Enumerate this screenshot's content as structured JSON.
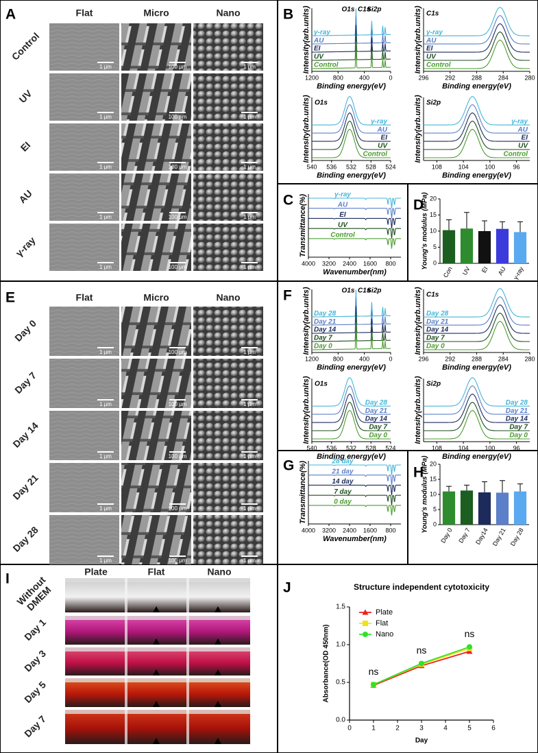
{
  "panel_a": {
    "letter": "A",
    "columns": [
      "Flat",
      "Micro",
      "Nano"
    ],
    "rows": [
      "Control",
      "UV",
      "EI",
      "AU",
      "γ-ray"
    ],
    "scale_bars": [
      "1 μm",
      "100 μm",
      "1 μm"
    ]
  },
  "panel_b": {
    "letter": "B",
    "ylabel": "Intensity(arb.units)",
    "xlabel": "Binding energy(eV)",
    "series": [
      {
        "name": "γ-ray",
        "color": "#45b5d8"
      },
      {
        "name": "AU",
        "color": "#5b7fc8"
      },
      {
        "name": "EI",
        "color": "#1d2b5c"
      },
      {
        "name": "UV",
        "color": "#1e4d1e"
      },
      {
        "name": "Control",
        "color": "#4a9c2e"
      }
    ],
    "plots": [
      {
        "xlim": [
          1200,
          0
        ],
        "xticks": [
          1200,
          800,
          400,
          0
        ],
        "peaks": [
          "O1s",
          "C1s",
          "Si2p"
        ]
      },
      {
        "title": "C1s",
        "xlim": [
          296,
          280
        ],
        "xticks": [
          296,
          292,
          288,
          284,
          280
        ]
      },
      {
        "title": "O1s",
        "xlim": [
          540,
          524
        ],
        "xticks": [
          540,
          536,
          532,
          528,
          524
        ]
      },
      {
        "title": "Si2p",
        "xlim": [
          110,
          94
        ],
        "xticks": [
          108,
          104,
          100,
          96
        ]
      }
    ]
  },
  "panel_c": {
    "letter": "C",
    "ylabel": "Transmittance(%)",
    "xlabel": "Wavenumber(nm)",
    "xlim": [
      4000,
      400
    ],
    "xticks": [
      4000,
      3200,
      2400,
      1600,
      800
    ],
    "series": [
      {
        "name": "γ-ray",
        "color": "#45b5d8"
      },
      {
        "name": "AU",
        "color": "#5b7fc8"
      },
      {
        "name": "EI",
        "color": "#1d2b5c"
      },
      {
        "name": "UV",
        "color": "#1e4d1e"
      },
      {
        "name": "Control",
        "color": "#4a9c2e"
      }
    ]
  },
  "panel_e": {
    "letter": "E",
    "columns": [
      "Flat",
      "Micro",
      "Nano"
    ],
    "rows": [
      "Day 0",
      "Day 7",
      "Day 14",
      "Day 21",
      "Day 28"
    ],
    "scale_bars": [
      "1 μm",
      "100 μm",
      "1 μm"
    ]
  },
  "panel_f": {
    "letter": "F",
    "ylabel": "Intensity(arb.units)",
    "xlabel": "Binding energy(eV)",
    "series": [
      {
        "name": "Day 28",
        "color": "#45b5d8"
      },
      {
        "name": "Day 21",
        "color": "#5b7fc8"
      },
      {
        "name": "Day 14",
        "color": "#1d2b5c"
      },
      {
        "name": "Day 7",
        "color": "#1e4d1e"
      },
      {
        "name": "Day 0",
        "color": "#4a9c2e"
      }
    ],
    "plots": [
      {
        "xlim": [
          1200,
          0
        ],
        "xticks": [
          1200,
          800,
          400,
          0
        ],
        "peaks": [
          "O1s",
          "C1s",
          "Si2p"
        ]
      },
      {
        "title": "C1s",
        "xlim": [
          296,
          280
        ],
        "xticks": [
          296,
          292,
          288,
          284,
          280
        ]
      },
      {
        "title": "O1s",
        "xlim": [
          540,
          524
        ],
        "xticks": [
          540,
          536,
          532,
          528,
          524
        ]
      },
      {
        "title": "Si2p",
        "xlim": [
          110,
          94
        ],
        "xticks": [
          108,
          104,
          100,
          96
        ]
      }
    ]
  },
  "panel_g": {
    "letter": "G",
    "ylabel": "Transmittance(%)",
    "xlabel": "Wavenumber(nm)",
    "xlim": [
      4000,
      400
    ],
    "xticks": [
      4000,
      3200,
      2400,
      1600,
      800
    ],
    "series": [
      {
        "name": "28 day",
        "color": "#45b5d8"
      },
      {
        "name": "21 day",
        "color": "#5b7fc8"
      },
      {
        "name": "14 day",
        "color": "#1d2b5c"
      },
      {
        "name": "7 day",
        "color": "#1e4d1e"
      },
      {
        "name": "0 day",
        "color": "#4a9c2e"
      }
    ]
  },
  "panel_i": {
    "letter": "I",
    "columns": [
      "Plate",
      "Flat",
      "Nano"
    ],
    "rows": [
      [
        "Without",
        "DMEM"
      ],
      [
        "Day 1"
      ],
      [
        "Day 3"
      ],
      [
        "Day 5"
      ],
      [
        "Day 7"
      ]
    ]
  },
  "chart_data": [
    {
      "type": "bar",
      "panel_label": "D",
      "ylabel": "Young's modulus (MPa)",
      "categories": [
        "Con",
        "UV",
        "EI",
        "AU",
        "γ-ray"
      ],
      "values": [
        10.3,
        10.8,
        10,
        10.7,
        9.7
      ],
      "errors": [
        3.2,
        5,
        3.2,
        2.2,
        3.2
      ],
      "colors": [
        "#1b5e20",
        "#2e8b2e",
        "#111111",
        "#3b3bdb",
        "#5aa9f0"
      ],
      "ylim": [
        0,
        20
      ],
      "yticks": [
        0,
        5,
        10,
        15,
        20
      ]
    },
    {
      "type": "bar",
      "panel_label": "H",
      "ylabel": "Young's modulus (MPa)",
      "categories": [
        "Day 0",
        "Day 7",
        "Day14",
        "Day 21",
        "Day 28"
      ],
      "values": [
        11,
        11.3,
        10.7,
        10.6,
        11
      ],
      "errors": [
        1.7,
        1.8,
        3.5,
        4,
        2.5
      ],
      "colors": [
        "#2e8b2e",
        "#1b5e20",
        "#1d2b5c",
        "#5b7fc8",
        "#5aa9f0"
      ],
      "ylim": [
        0,
        20
      ],
      "yticks": [
        0,
        5,
        10,
        15,
        20
      ]
    },
    {
      "type": "line",
      "panel_label": "J",
      "title": "Structure independent cytotoxicity",
      "xlabel": "Day",
      "ylabel": "Absorbance(OD 450nm)",
      "x": [
        1,
        3,
        5
      ],
      "series": [
        {
          "name": "Plate",
          "color": "#e8211d",
          "marker": "triangle",
          "values": [
            0.46,
            0.72,
            0.91
          ]
        },
        {
          "name": "Flat",
          "color": "#f2e21a",
          "marker": "square",
          "values": [
            0.47,
            0.74,
            0.95
          ]
        },
        {
          "name": "Nano",
          "color": "#33e02a",
          "marker": "circle",
          "values": [
            0.47,
            0.75,
            0.97
          ]
        }
      ],
      "annotations": [
        "ns",
        "ns",
        "ns"
      ],
      "xlim": [
        0,
        6
      ],
      "xticks": [
        0,
        1,
        2,
        3,
        4,
        5,
        6
      ],
      "ylim": [
        0,
        1.5
      ],
      "yticks": [
        {
          "value": 0,
          "label": "0.0"
        },
        {
          "value": 0.5,
          "label": "0.5"
        },
        {
          "value": 1,
          "label": "1.0"
        },
        {
          "value": 1.5,
          "label": "1.5"
        }
      ],
      "legend": "upper left"
    }
  ]
}
